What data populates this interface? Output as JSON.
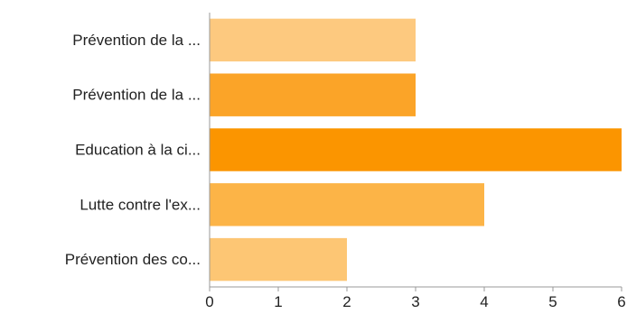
{
  "chart_data": {
    "type": "bar",
    "orientation": "horizontal",
    "categories": [
      "Prévention de la ...",
      "Prévention de la ...",
      "Education à la ci...",
      "Lutte contre l'ex...",
      "Prévention des co..."
    ],
    "values": [
      3,
      3,
      6,
      4,
      2
    ],
    "bar_colors": [
      "#fdc97f",
      "#fba428",
      "#fb9500",
      "#fcb447",
      "#fdc674"
    ],
    "xlim": [
      0,
      6
    ],
    "xticks": [
      "0",
      "1",
      "2",
      "3",
      "4",
      "5",
      "6"
    ],
    "title": "",
    "xlabel": "",
    "ylabel": "",
    "grid": false,
    "legend": "none"
  }
}
